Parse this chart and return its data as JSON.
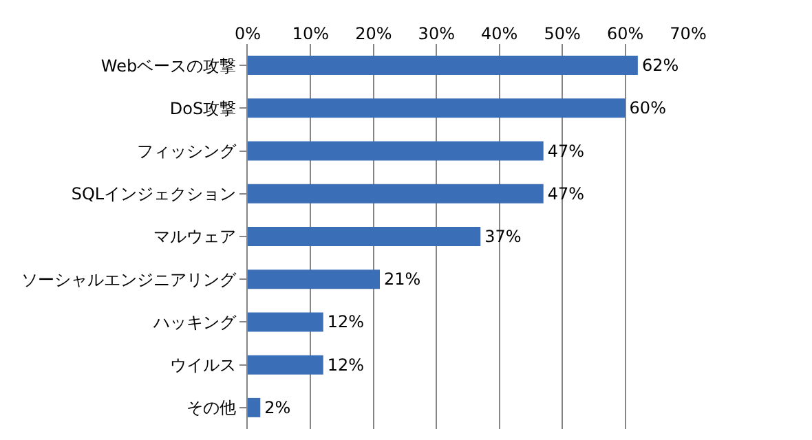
{
  "chart_data": {
    "type": "bar",
    "orientation": "horizontal",
    "categories": [
      "Webベースの攻撃",
      "DoS攻撃",
      "フィッシング",
      "SQLインジェクション",
      "マルウェア",
      "ソーシャルエンジニアリング",
      "ハッキング",
      "ウイルス",
      "その他"
    ],
    "values": [
      62,
      60,
      47,
      47,
      37,
      21,
      12,
      12,
      2
    ],
    "value_labels": [
      "62%",
      "60%",
      "47%",
      "47%",
      "37%",
      "21%",
      "12%",
      "12%",
      "2%"
    ],
    "color": "#3a6fb8",
    "xlim": [
      0,
      70
    ],
    "xticks": [
      {
        "value": 0,
        "label": "0%"
      },
      {
        "value": 10,
        "label": "10%"
      },
      {
        "value": 20,
        "label": "20%"
      },
      {
        "value": 30,
        "label": "30%"
      },
      {
        "value": 40,
        "label": "40%"
      },
      {
        "value": 50,
        "label": "50%"
      },
      {
        "value": 60,
        "label": "60%"
      },
      {
        "value": 70,
        "label": "70%"
      }
    ],
    "grid": "x"
  }
}
